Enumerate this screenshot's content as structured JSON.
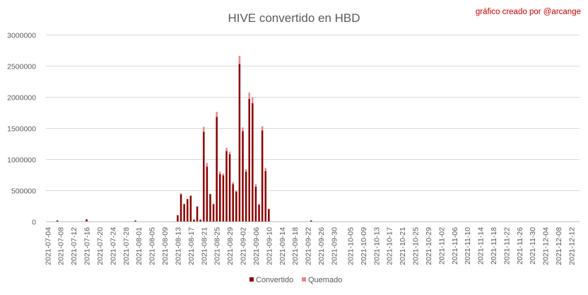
{
  "chart_data": {
    "type": "bar",
    "stacked": true,
    "title": "HIVE convertido en HBD",
    "credit": "gráfico creado por @arcange",
    "xlabel": "",
    "ylabel": "",
    "ylim": [
      0,
      3000000
    ],
    "yticks": [
      "0",
      "500000",
      "1000000",
      "1500000",
      "2000000",
      "2500000",
      "3000000"
    ],
    "grid": true,
    "legend_position": "bottom",
    "start_date": "2021-07-04",
    "end_date": "2021-12-14",
    "tick_dates": [
      "2021-07-04",
      "2021-07-08",
      "2021-07-12",
      "2021-07-16",
      "2021-07-20",
      "2021-07-24",
      "2021-07-28",
      "2021-08-01",
      "2021-08-05",
      "2021-08-09",
      "2021-08-13",
      "2021-08-17",
      "2021-08-21",
      "2021-08-25",
      "2021-08-29",
      "2021-09-02",
      "2021-09-06",
      "2021-09-10",
      "2021-09-14",
      "2021-09-18",
      "2021-09-22",
      "2021-09-26",
      "2021-09-30",
      "2021-10-05",
      "2021-10-09",
      "2021-10-13",
      "2021-10-17",
      "2021-10-21",
      "2021-10-25",
      "2021-10-29",
      "2021-11-02",
      "2021-11-06",
      "2021-11-10",
      "2021-11-14",
      "2021-11-18",
      "2021-11-22",
      "2021-11-26",
      "2021-11-30",
      "2021-12-04",
      "2021-12-08",
      "2021-12-12"
    ],
    "series": [
      {
        "name": "Convertido",
        "color": "#8b0000",
        "points": [
          [
            "2021-07-07",
            15000
          ],
          [
            "2021-07-16",
            35000
          ],
          [
            "2021-07-31",
            15000
          ],
          [
            "2021-08-13",
            100000
          ],
          [
            "2021-08-14",
            440000
          ],
          [
            "2021-08-15",
            280000
          ],
          [
            "2021-08-16",
            360000
          ],
          [
            "2021-08-17",
            410000
          ],
          [
            "2021-08-18",
            30000
          ],
          [
            "2021-08-19",
            240000
          ],
          [
            "2021-08-20",
            30000
          ],
          [
            "2021-08-21",
            1440000
          ],
          [
            "2021-08-22",
            880000
          ],
          [
            "2021-08-23",
            440000
          ],
          [
            "2021-08-24",
            280000
          ],
          [
            "2021-08-25",
            1680000
          ],
          [
            "2021-08-26",
            760000
          ],
          [
            "2021-08-27",
            740000
          ],
          [
            "2021-08-28",
            1130000
          ],
          [
            "2021-08-29",
            1080000
          ],
          [
            "2021-08-30",
            600000
          ],
          [
            "2021-08-31",
            480000
          ],
          [
            "2021-09-01",
            2530000
          ],
          [
            "2021-09-02",
            1450000
          ],
          [
            "2021-09-03",
            800000
          ],
          [
            "2021-09-04",
            1970000
          ],
          [
            "2021-09-05",
            1900000
          ],
          [
            "2021-09-06",
            560000
          ],
          [
            "2021-09-07",
            270000
          ],
          [
            "2021-09-08",
            1460000
          ],
          [
            "2021-09-09",
            810000
          ],
          [
            "2021-09-10",
            200000
          ],
          [
            "2021-09-23",
            15000
          ]
        ]
      },
      {
        "name": "Quemado",
        "color": "#e8898c",
        "points": [
          [
            "2021-08-14",
            10000
          ],
          [
            "2021-08-17",
            10000
          ],
          [
            "2021-08-21",
            80000
          ],
          [
            "2021-08-22",
            60000
          ],
          [
            "2021-08-25",
            80000
          ],
          [
            "2021-08-26",
            40000
          ],
          [
            "2021-08-27",
            30000
          ],
          [
            "2021-08-28",
            50000
          ],
          [
            "2021-08-29",
            40000
          ],
          [
            "2021-08-30",
            30000
          ],
          [
            "2021-08-31",
            20000
          ],
          [
            "2021-09-01",
            130000
          ],
          [
            "2021-09-02",
            60000
          ],
          [
            "2021-09-03",
            40000
          ],
          [
            "2021-09-04",
            100000
          ],
          [
            "2021-09-05",
            90000
          ],
          [
            "2021-09-06",
            40000
          ],
          [
            "2021-09-07",
            10000
          ],
          [
            "2021-09-08",
            70000
          ],
          [
            "2021-09-09",
            50000
          ]
        ]
      }
    ]
  }
}
